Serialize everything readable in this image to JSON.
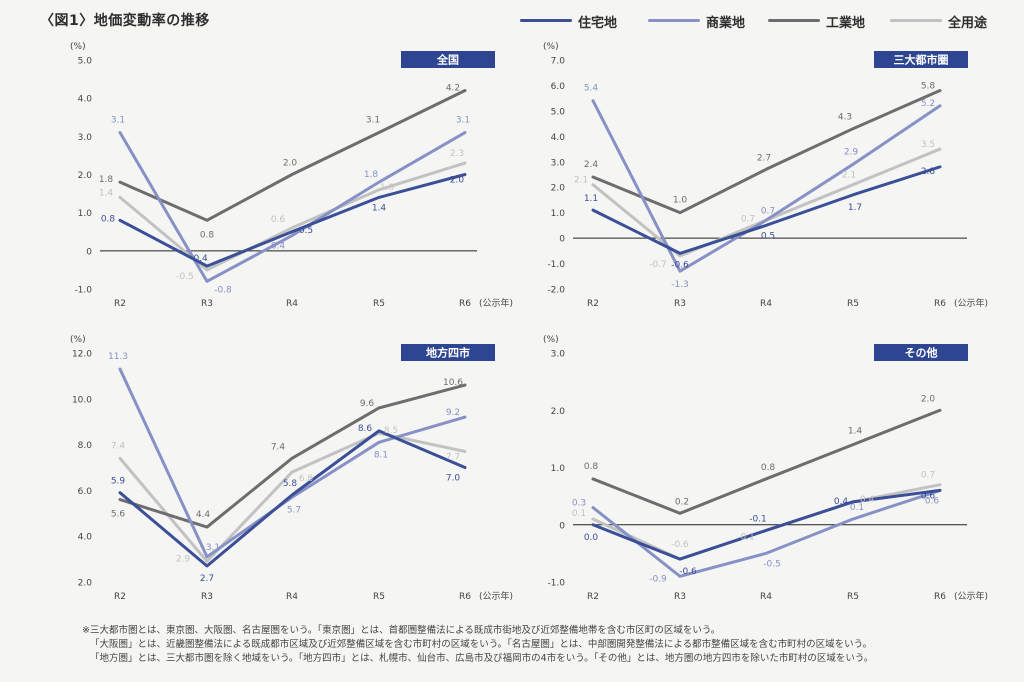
{
  "title": "〈図1〉地価変動率の推移",
  "legend": [
    {
      "name": "住宅地",
      "color": "#3a4f97"
    },
    {
      "name": "商業地",
      "color": "#8791c6"
    },
    {
      "name": "工業地",
      "color": "#6d6d6d"
    },
    {
      "name": "全用途",
      "color": "#c2c2c2"
    }
  ],
  "chart_data": [
    {
      "type": "line",
      "title": "全国",
      "unit": "(%)",
      "categories": [
        "R2",
        "R3",
        "R4",
        "R5",
        "R6"
      ],
      "x_suffix": "(公示年)",
      "ylim": [
        -1.0,
        5.0
      ],
      "yticks": [
        "5.0",
        "4.0",
        "3.0",
        "2.0",
        "1.0",
        "0",
        "-1.0"
      ],
      "series": [
        {
          "name": "住宅地",
          "values": [
            0.8,
            -0.4,
            0.5,
            1.4,
            2.0
          ],
          "labels": [
            "0.8",
            "-0.4",
            "0.5",
            "1.4",
            "2.0"
          ]
        },
        {
          "name": "商業地",
          "values": [
            3.1,
            -0.8,
            0.4,
            1.8,
            3.1
          ],
          "labels": [
            "3.1",
            "-0.8",
            "0.4",
            "1.8",
            "3.1"
          ]
        },
        {
          "name": "工業地",
          "values": [
            1.8,
            0.8,
            2.0,
            3.1,
            4.2
          ],
          "labels": [
            "1.8",
            "0.8",
            "2.0",
            "3.1",
            "4.2"
          ]
        },
        {
          "name": "全用途",
          "values": [
            1.4,
            -0.5,
            0.6,
            1.6,
            2.3
          ],
          "labels": [
            "1.4",
            "-0.5",
            "0.6",
            "1.6",
            "2.3"
          ]
        }
      ]
    },
    {
      "type": "line",
      "title": "三大都市圏",
      "unit": "(%)",
      "categories": [
        "R2",
        "R3",
        "R4",
        "R5",
        "R6"
      ],
      "x_suffix": "(公示年)",
      "ylim": [
        -2.0,
        7.0
      ],
      "yticks": [
        "7.0",
        "6.0",
        "5.0",
        "4.0",
        "3.0",
        "2.0",
        "1.0",
        "0",
        "-1.0",
        "-2.0"
      ],
      "series": [
        {
          "name": "住宅地",
          "values": [
            1.1,
            -0.6,
            0.5,
            1.7,
            2.8
          ],
          "labels": [
            "1.1",
            "-0.6",
            "0.5",
            "1.7",
            "2.8"
          ]
        },
        {
          "name": "商業地",
          "values": [
            5.4,
            -1.3,
            0.7,
            2.9,
            5.2
          ],
          "labels": [
            "5.4",
            "-1.3",
            "0.7",
            "2.9",
            "5.2"
          ]
        },
        {
          "name": "工業地",
          "values": [
            2.4,
            1.0,
            2.7,
            4.3,
            5.8
          ],
          "labels": [
            "2.4",
            "1.0",
            "2.7",
            "4.3",
            "5.8"
          ]
        },
        {
          "name": "全用途",
          "values": [
            2.1,
            -0.7,
            0.7,
            2.1,
            3.5
          ],
          "labels": [
            "2.1",
            "-0.7",
            "0.7",
            "2.1",
            "3.5"
          ]
        }
      ]
    },
    {
      "type": "line",
      "title": "地方四市",
      "unit": "(%)",
      "categories": [
        "R2",
        "R3",
        "R4",
        "R5",
        "R6"
      ],
      "x_suffix": "(公示年)",
      "ylim": [
        2.0,
        12.0
      ],
      "yticks": [
        "12.0",
        "10.0",
        "8.0",
        "6.0",
        "4.0",
        "2.0"
      ],
      "series": [
        {
          "name": "住宅地",
          "values": [
            5.9,
            2.7,
            5.8,
            8.6,
            7.0
          ],
          "labels": [
            "5.9",
            "2.7",
            "5.8",
            "8.6",
            "7.0"
          ]
        },
        {
          "name": "商業地",
          "values": [
            11.3,
            3.1,
            5.7,
            8.1,
            9.2
          ],
          "labels": [
            "11.3",
            "3.1",
            "5.7",
            "8.1",
            "9.2"
          ]
        },
        {
          "name": "工業地",
          "values": [
            5.6,
            4.4,
            7.4,
            9.6,
            10.6
          ],
          "labels": [
            "5.6",
            "4.4",
            "7.4",
            "9.6",
            "10.6"
          ]
        },
        {
          "name": "全用途",
          "values": [
            7.4,
            2.9,
            6.8,
            8.5,
            7.7
          ],
          "labels": [
            "7.4",
            "2.9",
            "6.8",
            "8.5",
            "7.7"
          ]
        }
      ]
    },
    {
      "type": "line",
      "title": "その他",
      "unit": "(%)",
      "categories": [
        "R2",
        "R3",
        "R4",
        "R5",
        "R6"
      ],
      "x_suffix": "(公示年)",
      "ylim": [
        -1.0,
        3.0
      ],
      "yticks": [
        "3.0",
        "2.0",
        "1.0",
        "0",
        "-1.0"
      ],
      "series": [
        {
          "name": "住宅地",
          "values": [
            0.0,
            -0.6,
            -0.1,
            0.4,
            0.6
          ],
          "labels": [
            "0.0",
            "-0.6",
            "-0.1",
            "0.4",
            "0.6"
          ]
        },
        {
          "name": "商業地",
          "values": [
            0.3,
            -0.9,
            -0.5,
            0.1,
            0.6
          ],
          "labels": [
            "0.3",
            "-0.9",
            "-0.5",
            "0.1",
            "0.6"
          ]
        },
        {
          "name": "工業地",
          "values": [
            0.8,
            0.2,
            0.8,
            1.4,
            2.0
          ],
          "labels": [
            "0.8",
            "0.2",
            "0.8",
            "1.4",
            "2.0"
          ]
        },
        {
          "name": "全用途",
          "values": [
            0.1,
            -0.6,
            -0.1,
            0.4,
            0.7
          ],
          "labels": [
            "0.1",
            "-0.6",
            "-0.1",
            "0.4",
            "0.7"
          ]
        }
      ]
    }
  ],
  "notes": [
    "※三大都市圏とは、東京圏、大阪圏、名古屋圏をいう。「東京圏」とは、首都圏整備法による既成市街地及び近郊整備地帯を含む市区町の区域をいう。",
    "「大阪圏」とは、近畿圏整備法による既成都市区域及び近郊整備区域を含む市町村の区域をいう。「名古屋圏」とは、中部圏開発整備法による都市整備区域を含む市町村の区域をいう。",
    "「地方圏」とは、三大都市圏を除く地域をいう。「地方四市」とは、札幌市、仙台市、広島市及び福岡市の4市をいう。「その他」とは、地方圏の地方四市を除いた市町村の区域をいう。"
  ]
}
